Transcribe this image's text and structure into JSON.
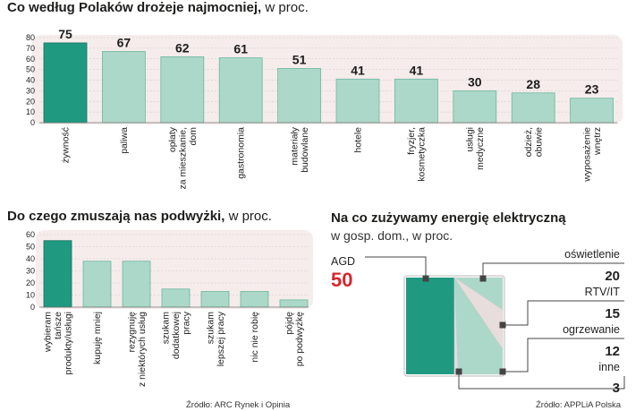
{
  "chart1": {
    "title": "Co według Polaków drożeje najmocniej,",
    "unit": " w proc."
  },
  "chart2": {
    "title": "Do czego zmuszają nas podwyżki,",
    "unit": " w proc.",
    "source": "Źródło: ARC Rynek i Opinia"
  },
  "chart3": {
    "title": "Na co zużywamy energię elektryczną",
    "subtitle": "w gosp. dom., w proc.",
    "source": "Źródło: APPLiA Polska"
  },
  "colors": {
    "highlight": "#1f9a80",
    "bar": "#abd8c9",
    "bar_edge": "#6fb7a2",
    "panel": "#f6ecec",
    "grid": "#c9c9c9",
    "accent": "#d6262e",
    "slice_alt": "#e7dddd"
  },
  "chart_data": [
    {
      "type": "bar",
      "title": "Co według Polaków drożeje najmocniej, w proc.",
      "categories": [
        "żywność",
        "paliwa",
        "opłaty za mieszkanie, dom",
        "gastronomia",
        "materiały budowlane",
        "hotele",
        "fryzjer, kosmetyczka",
        "usługi medyczne",
        "odzież, obuwie",
        "wyposażenie wnętrz"
      ],
      "category_lines": [
        [
          "żywność"
        ],
        [
          "paliwa"
        ],
        [
          "opłaty",
          "za mieszkanie,",
          "dom"
        ],
        [
          "gastronomia"
        ],
        [
          "materiały",
          "budowlane"
        ],
        [
          "hotele"
        ],
        [
          "fryzjer,",
          "kosmetyczka"
        ],
        [
          "usługi",
          "medyczne"
        ],
        [
          "odzież,",
          "obuwie"
        ],
        [
          "wyposażenie",
          "wnętrz"
        ]
      ],
      "values": [
        75,
        67,
        62,
        61,
        51,
        41,
        41,
        30,
        28,
        23
      ],
      "value_labels": [
        "75",
        "67",
        "62",
        "61",
        "51",
        "41",
        "41",
        "30",
        "28",
        "23"
      ],
      "highlight_index": 0,
      "ylim": [
        0,
        80
      ],
      "yticks": [
        "0",
        "10",
        "20",
        "30",
        "40",
        "50",
        "60",
        "70",
        "80"
      ],
      "grid": true
    },
    {
      "type": "bar",
      "title": "Do czego zmuszają nas podwyżki, w proc.",
      "categories": [
        "wybieram tańsze produkty/usługi",
        "kupuję mniej",
        "rezygnuję z niektórych usług",
        "szukam dodatkowej pracy",
        "szukam lepszej pracy",
        "nic nie robię",
        "pójdę po podwyżkę"
      ],
      "category_lines": [
        [
          "wybieram",
          "tańsze",
          "produkty/usługi"
        ],
        [
          "kupuję mniej"
        ],
        [
          "rezygnuję",
          "z niektórych usług"
        ],
        [
          "szukam",
          "dodatkowej",
          "pracy"
        ],
        [
          "szukam",
          "lepszej pracy"
        ],
        [
          "nic nie robię"
        ],
        [
          "pójdę",
          "po podwyżkę"
        ]
      ],
      "values": [
        55,
        38,
        38,
        15,
        13,
        13,
        6
      ],
      "highlight_index": 0,
      "ylim": [
        0,
        60
      ],
      "yticks": [
        "0",
        "10",
        "20",
        "30",
        "40",
        "50",
        "60"
      ],
      "grid": true
    },
    {
      "type": "pie",
      "title": "Na co zużywamy energię elektryczną",
      "subtitle": "w gosp. dom., w proc.",
      "categories": [
        "AGD",
        "oświetlenie",
        "RTV/IT",
        "ogrzewanie",
        "inne"
      ],
      "values": [
        50,
        20,
        15,
        12,
        3
      ],
      "value_labels": [
        "50",
        "20",
        "15",
        "12",
        "3"
      ]
    }
  ]
}
